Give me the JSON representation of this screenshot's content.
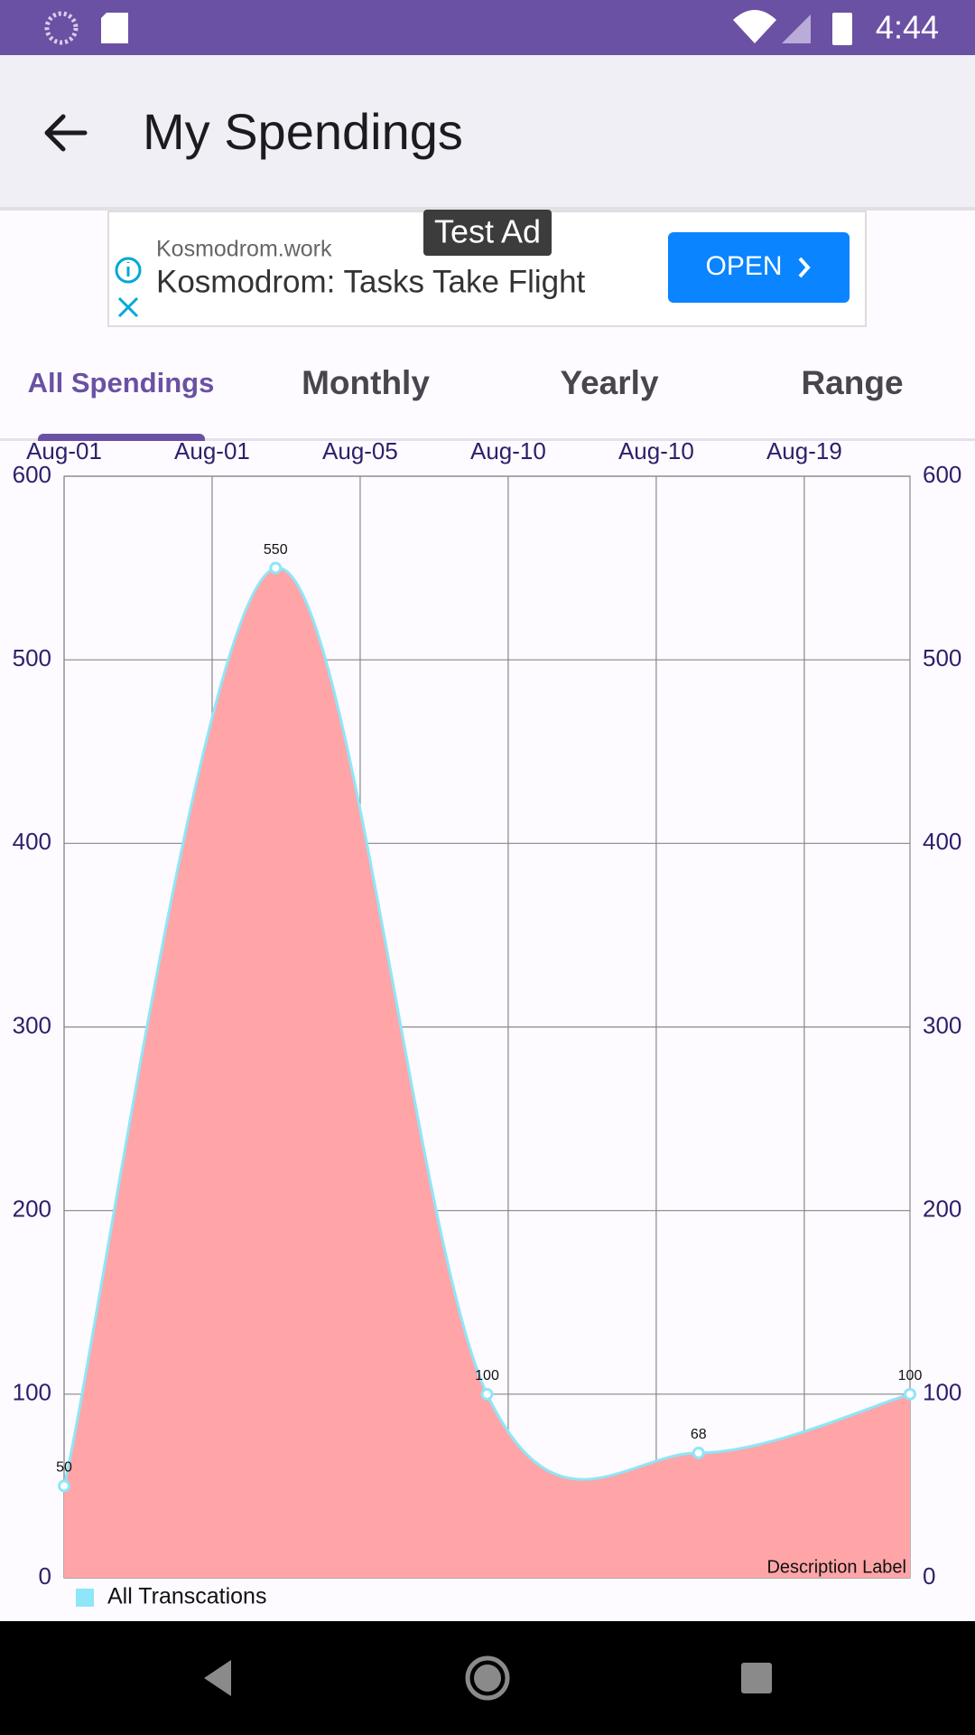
{
  "status_bar": {
    "time": "4:44"
  },
  "app_bar": {
    "title": "My Spendings"
  },
  "ad": {
    "badge": "Test Ad",
    "domain": "Kosmodrom.work",
    "headline": "Kosmodrom: Tasks Take Flight",
    "button": "OPEN"
  },
  "tabs": [
    "All Spendings",
    "Monthly",
    "Yearly",
    "Range"
  ],
  "chart_data": {
    "type": "area",
    "x": [
      0,
      1,
      2,
      3,
      4
    ],
    "xlim": [
      0,
      4
    ],
    "xticks": [
      {
        "value": 0,
        "label": "Aug-01"
      },
      {
        "value": 0.7,
        "label": "Aug-01"
      },
      {
        "value": 1.4,
        "label": "Aug-05"
      },
      {
        "value": 2.1,
        "label": "Aug-10"
      },
      {
        "value": 2.8,
        "label": "Aug-10"
      },
      {
        "value": 3.5,
        "label": "Aug-19"
      }
    ],
    "series": [
      {
        "name": "All Transcations",
        "color": "#8ee6f8",
        "fill_color": "#ffa5a7",
        "values": [
          50,
          550,
          100,
          68,
          100
        ]
      }
    ],
    "ylim": [
      0,
      600
    ],
    "yticks": [
      0,
      100,
      200,
      300,
      400,
      500,
      600
    ],
    "y2lim": [
      0,
      600
    ],
    "y2ticks": [
      0,
      100,
      200,
      300,
      400,
      500,
      600
    ],
    "grid": true,
    "legend": "bottom-left",
    "description": "Description Label"
  }
}
